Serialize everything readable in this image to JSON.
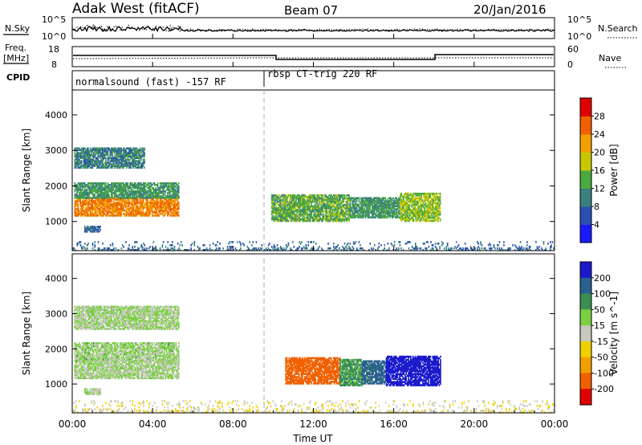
{
  "header": {
    "station": "Adak West (fitACF)",
    "beam": "Beam 07",
    "date": "20/Jan/2016"
  },
  "strip_panels": {
    "nsky_label": "N.Sky",
    "nsearch_label": "N.Search",
    "nsky_ticks": [
      "10^5",
      "10^0"
    ],
    "nsky_right_ticks": [
      "10^5",
      "10^0"
    ],
    "freq_label_1": "Freq.",
    "freq_label_2": "[MHz]",
    "freq_ticks": [
      "18",
      "8"
    ],
    "nave_label": "Nave",
    "nave_ticks": [
      "60",
      "0"
    ],
    "cpid_label": "CPID",
    "cpid_mode_1": "normalsound (fast) -157 RF",
    "cpid_mode_2": "rbsp CT-trig 220 RF"
  },
  "chart_data": [
    {
      "type": "heatmap",
      "name": "power",
      "ylabel": "Slant Range [km]",
      "yticks": [
        1000,
        2000,
        3000,
        4000
      ],
      "ylim": [
        180,
        4700
      ],
      "xlim_hours": [
        0,
        24
      ],
      "colorbar_label": "Power [dB]",
      "colorbar_ticks": [
        "4",
        "8",
        "12",
        "16",
        "20",
        "24",
        "28"
      ],
      "colorbar_colors": [
        "#1a1aff",
        "#2a4fb0",
        "#3a7f80",
        "#4aaa40",
        "#c8c800",
        "#f0a000",
        "#f06000",
        "#e00000"
      ],
      "regions": [
        {
          "t0": 0.1,
          "t1": 5.3,
          "r0": 1150,
          "r1": 1650,
          "level": 24
        },
        {
          "t0": 0.1,
          "t1": 5.3,
          "r0": 1650,
          "r1": 2100,
          "level": 12
        },
        {
          "t0": 0.1,
          "t1": 3.6,
          "r0": 2500,
          "r1": 3050,
          "level": 10
        },
        {
          "t0": 0.6,
          "t1": 1.4,
          "r0": 700,
          "r1": 850,
          "level": 8
        },
        {
          "t0": 9.9,
          "t1": 13.8,
          "r0": 1000,
          "r1": 1750,
          "level": 14
        },
        {
          "t0": 13.8,
          "t1": 16.3,
          "r0": 1100,
          "r1": 1650,
          "level": 12
        },
        {
          "t0": 16.3,
          "t1": 18.3,
          "r0": 1000,
          "r1": 1800,
          "level": 16
        },
        {
          "t0": 0.0,
          "t1": 24.0,
          "r0": 180,
          "r1": 450,
          "level": 8
        }
      ]
    },
    {
      "type": "heatmap",
      "name": "velocity",
      "ylabel": "Slant Range [km]",
      "yticks": [
        1000,
        2000,
        3000,
        4000
      ],
      "ylim": [
        180,
        4700
      ],
      "xlim_hours": [
        0,
        24
      ],
      "xticks": [
        "00:00",
        "04:00",
        "08:00",
        "12:00",
        "16:00",
        "20:00",
        "00:00"
      ],
      "xlabel": "Time UT",
      "colorbar_label": "Velocity [m s^-1]",
      "colorbar_ticks": [
        "200",
        "100",
        "50",
        "15",
        "-15",
        "-50",
        "-100",
        "-200"
      ],
      "colorbar_colors": [
        "#1a1acc",
        "#2a6090",
        "#3a9050",
        "#7ad040",
        "#c8c8c0",
        "#f0d000",
        "#f0a000",
        "#f06000",
        "#e00000"
      ],
      "regions": [
        {
          "t0": 0.1,
          "t1": 5.3,
          "r0": 1150,
          "r1": 1650,
          "vel": 0
        },
        {
          "t0": 0.1,
          "t1": 5.3,
          "r0": 1650,
          "r1": 2150,
          "vel": 5
        },
        {
          "t0": 0.1,
          "t1": 5.3,
          "r0": 2550,
          "r1": 3200,
          "vel": 0
        },
        {
          "t0": 0.6,
          "t1": 1.4,
          "r0": 700,
          "r1": 850,
          "vel": 0
        },
        {
          "t0": 10.6,
          "t1": 13.3,
          "r0": 1000,
          "r1": 1750,
          "vel": -200
        },
        {
          "t0": 13.3,
          "t1": 14.4,
          "r0": 950,
          "r1": 1700,
          "vel": 50
        },
        {
          "t0": 14.4,
          "t1": 15.6,
          "r0": 1000,
          "r1": 1650,
          "vel": 100
        },
        {
          "t0": 15.6,
          "t1": 18.3,
          "r0": 950,
          "r1": 1800,
          "vel": 200
        },
        {
          "t0": 0.0,
          "t1": 24.0,
          "r0": 180,
          "r1": 500,
          "vel": -30
        }
      ]
    }
  ]
}
